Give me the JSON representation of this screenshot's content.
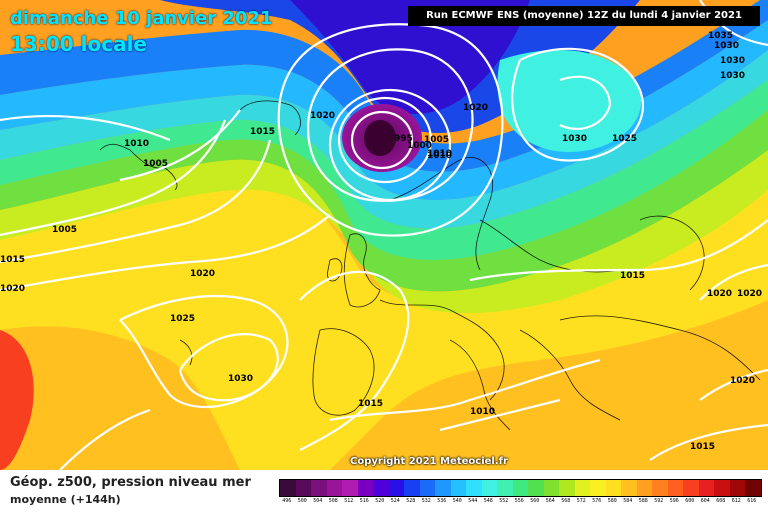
{
  "header": {
    "date_line": "dimanche 10 janvier 2021",
    "time_line": "13:00 locale",
    "run_info": "Run ECMWF ENS (moyenne) 12Z du lundi 4 janvier 2021"
  },
  "copyright": "Copyright 2021 Meteociel.fr",
  "legend": {
    "title": "Géop. z500, pression niveau mer",
    "subtitle": "moyenne   (+144h)",
    "scale_values": [
      "496",
      "500",
      "504",
      "508",
      "512",
      "516",
      "520",
      "524",
      "528",
      "532",
      "536",
      "540",
      "544",
      "548",
      "552",
      "556",
      "560",
      "564",
      "568",
      "572",
      "576",
      "580",
      "584",
      "588",
      "592",
      "596",
      "600",
      "604",
      "608",
      "612",
      "616"
    ],
    "scale_colors": [
      "#3a0a3a",
      "#5a0a5a",
      "#7a107a",
      "#9a149a",
      "#b01cb0",
      "#7a00c0",
      "#5000d8",
      "#2a10e8",
      "#1840f0",
      "#1a6cf8",
      "#1e98ff",
      "#24c0ff",
      "#30e0ff",
      "#40f0e0",
      "#40f0b0",
      "#40e880",
      "#50e050",
      "#80e030",
      "#b0e820",
      "#e0f020",
      "#f8f020",
      "#ffe020",
      "#ffc020",
      "#ffa020",
      "#ff8020",
      "#ff6020",
      "#f84020",
      "#e82020",
      "#c81010",
      "#a00808",
      "#700404"
    ]
  },
  "isobar_labels": [
    "1035",
    "1030",
    "1030",
    "1030",
    "1020",
    "1020",
    "1015",
    "1010",
    "1010",
    "1005",
    "995",
    "1000",
    "1005",
    "1010",
    "1030",
    "1025",
    "1005",
    "1015",
    "1020",
    "1020",
    "1025",
    "1030",
    "1015",
    "1015",
    "1020",
    "1020",
    "1010",
    "1020",
    "1015"
  ],
  "colors": {
    "isobar": "#ffffff",
    "low_center": "#3a0030",
    "title": "#00e5ff"
  }
}
